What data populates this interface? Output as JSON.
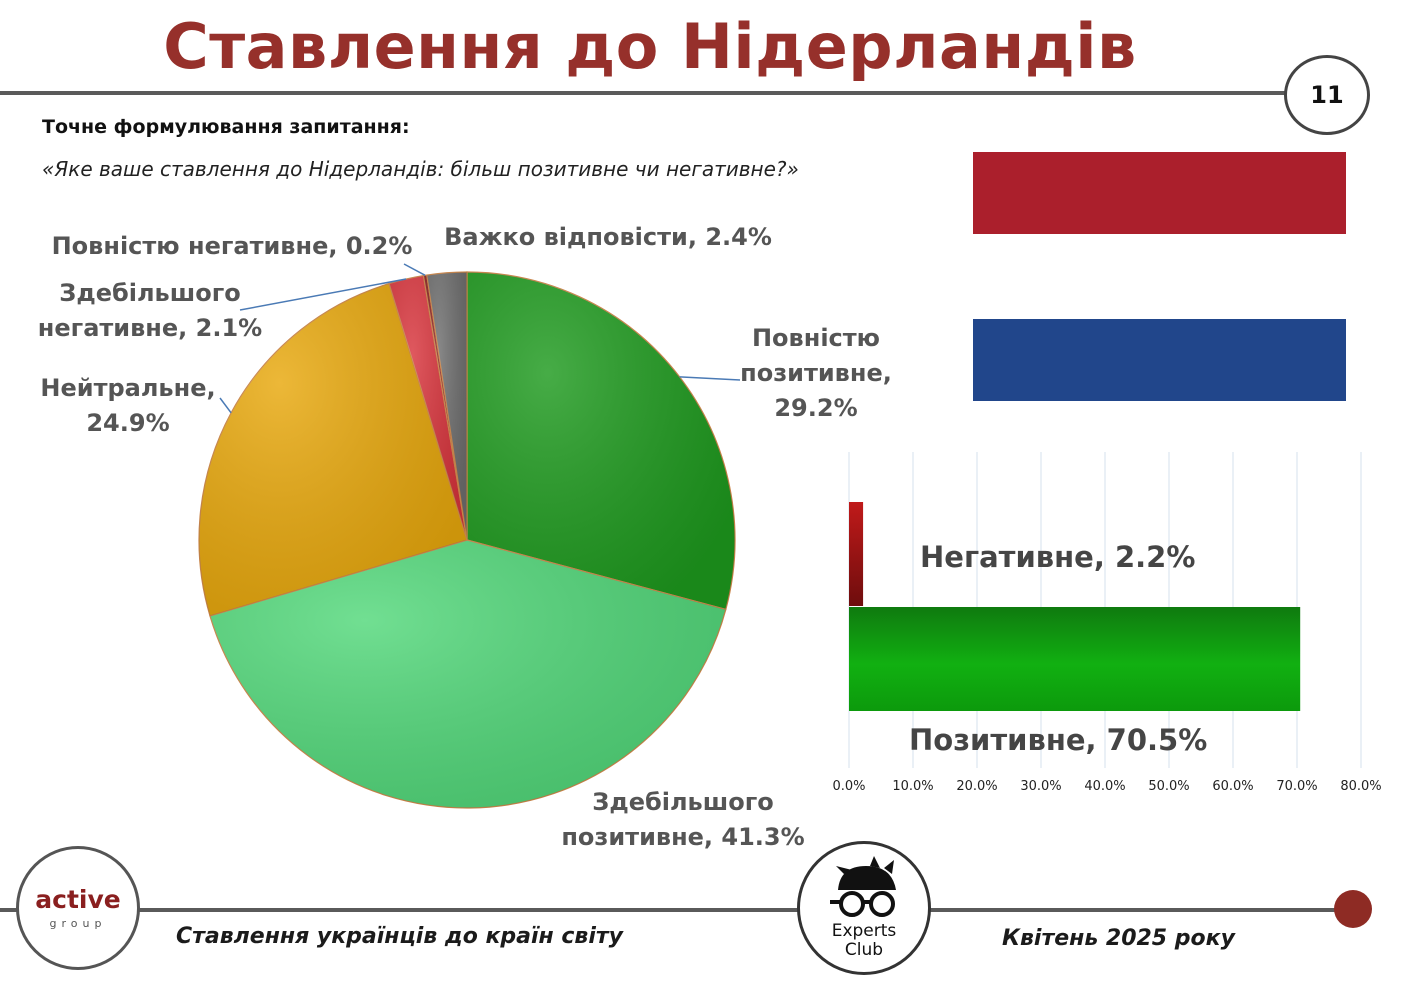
{
  "header": {
    "title": "Ставлення до Нідерландів",
    "page_number": "11"
  },
  "question": {
    "label": "Точне формулювання запитання:",
    "text": "«Яке ваше ставлення до Нідерландів: більш позитивне чи негативне?»"
  },
  "flag": {
    "top_color": "#ab1f2c",
    "bottom_color": "#21468b"
  },
  "chart_data": [
    {
      "type": "pie",
      "slices": [
        {
          "label_lines": [
            "Повністю",
            "позитивне,",
            "29.2%"
          ],
          "value": 29.2,
          "color": "#1e9a1e"
        },
        {
          "label_lines": [
            "Здебільшого",
            "позитивне, 41.3%"
          ],
          "value": 41.3,
          "color": "#52d87a"
        },
        {
          "label_lines": [
            "Нейтральне,",
            "24.9%"
          ],
          "value": 24.9,
          "color": "#e8a80c"
        },
        {
          "label_lines": [
            "Здебільшого",
            "негативне, 2.1%"
          ],
          "value": 2.1,
          "color": "#d8343c"
        },
        {
          "label_lines": [
            "Повністю негативне, 0.2%"
          ],
          "value": 0.2,
          "color": "#8a1f1f"
        },
        {
          "label_lines": [
            "Важко відповісти, 2.4%"
          ],
          "value": 2.4,
          "color": "#6e6e6e"
        }
      ]
    },
    {
      "type": "bar",
      "orientation": "horizontal",
      "categories": [
        "Негативне, 2.2%",
        "Позитивне, 70.5%"
      ],
      "values": [
        2.2,
        70.5
      ],
      "colors": [
        "#b01818",
        "#1aa81a"
      ],
      "xlim": [
        0,
        80
      ],
      "x_ticks": [
        "0.0%",
        "10.0%",
        "20.0%",
        "30.0%",
        "40.0%",
        "50.0%",
        "60.0%",
        "70.0%",
        "80.0%"
      ],
      "grid": true
    }
  ],
  "footer": {
    "left": "Ставлення українців до країн світу",
    "right": "Квітень 2025 року",
    "logo_left_word": "active",
    "logo_left_sub": "group",
    "logo_right_text_1": "Experts",
    "logo_right_text_2": "Club"
  }
}
